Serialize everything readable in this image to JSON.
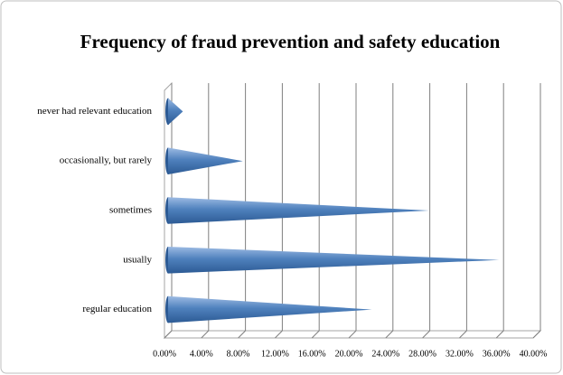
{
  "chart_data": {
    "type": "cone-bar",
    "title": "Frequency of fraud prevention and safety education",
    "categories": [
      "never had relevant education",
      "occasionally, but rarely",
      "sometimes",
      "usually",
      "regular education"
    ],
    "values": [
      2.0,
      8.5,
      28.7,
      36.3,
      22.5
    ],
    "color": "#4f81bd",
    "xlim": [
      0,
      40
    ],
    "xticks": [
      {
        "value": 0,
        "label": "0.00%"
      },
      {
        "value": 4,
        "label": "4.00%"
      },
      {
        "value": 8,
        "label": "8.00%"
      },
      {
        "value": 12,
        "label": "12.00%"
      },
      {
        "value": 16,
        "label": "16.00%"
      },
      {
        "value": 20,
        "label": "20.00%"
      },
      {
        "value": 24,
        "label": "24.00%"
      },
      {
        "value": 28,
        "label": "28.00%"
      },
      {
        "value": 32,
        "label": "32.00%"
      },
      {
        "value": 36,
        "label": "36.00%"
      },
      {
        "value": 40,
        "label": "40.00%"
      }
    ],
    "grid": true
  }
}
